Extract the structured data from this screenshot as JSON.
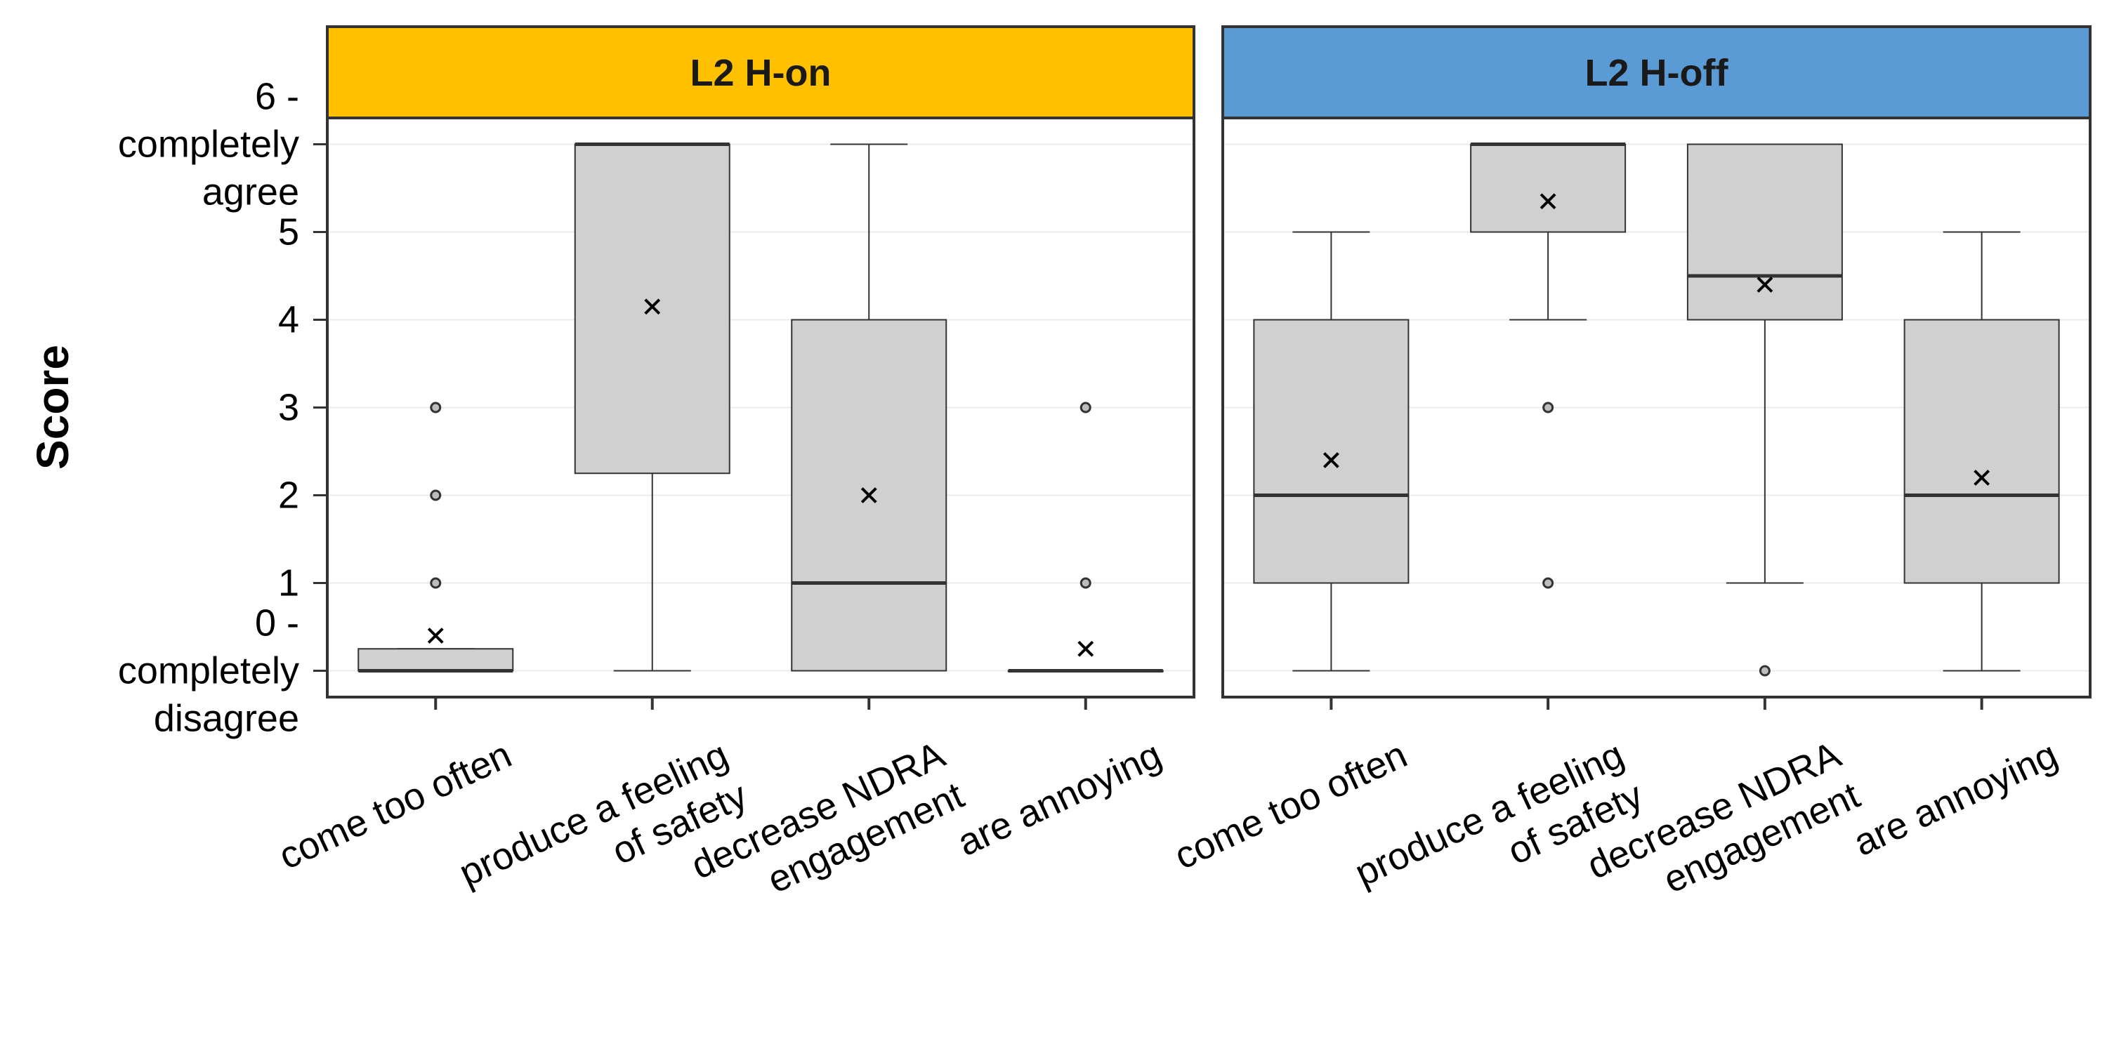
{
  "chart_data": {
    "type": "boxplot",
    "ylabel": "Score",
    "ylim": [
      -0.3,
      6.3
    ],
    "yticks": [
      {
        "value": 0,
        "lines": [
          "0 -",
          "completely",
          "disagree"
        ]
      },
      {
        "value": 1,
        "lines": [
          "1"
        ]
      },
      {
        "value": 2,
        "lines": [
          "2"
        ]
      },
      {
        "value": 3,
        "lines": [
          "3"
        ]
      },
      {
        "value": 4,
        "lines": [
          "4"
        ]
      },
      {
        "value": 5,
        "lines": [
          "5"
        ]
      },
      {
        "value": 6,
        "lines": [
          "6 -",
          "completely",
          "agree"
        ]
      }
    ],
    "categories": [
      {
        "lines": [
          "come too often"
        ]
      },
      {
        "lines": [
          "produce a feeling",
          "of safety"
        ]
      },
      {
        "lines": [
          "decrease NDRA",
          "engagement"
        ]
      },
      {
        "lines": [
          "are annoying"
        ]
      }
    ],
    "box_fill": "#d1d0d1",
    "panels": [
      {
        "title": "L2 H-on",
        "strip_color": "#ffc000",
        "boxes": [
          {
            "lower_whisker": 0,
            "q1": 0,
            "median": 0,
            "q3": 0.25,
            "upper_whisker": 0.25,
            "mean": 0.4,
            "outliers": [
              1,
              2,
              3
            ]
          },
          {
            "lower_whisker": 0,
            "q1": 2.25,
            "median": 6,
            "q3": 6,
            "upper_whisker": 6,
            "mean": 4.15,
            "outliers": []
          },
          {
            "lower_whisker": 0,
            "q1": 0,
            "median": 1,
            "q3": 4,
            "upper_whisker": 6,
            "mean": 2.0,
            "outliers": []
          },
          {
            "lower_whisker": 0,
            "q1": 0,
            "median": 0,
            "q3": 0,
            "upper_whisker": 0,
            "mean": 0.25,
            "outliers": [
              1,
              3
            ]
          }
        ]
      },
      {
        "title": "L2 H-off",
        "strip_color": "#5b9bd5",
        "boxes": [
          {
            "lower_whisker": 0,
            "q1": 1,
            "median": 2,
            "q3": 4,
            "upper_whisker": 5,
            "mean": 2.4,
            "outliers": []
          },
          {
            "lower_whisker": 4,
            "q1": 5,
            "median": 6,
            "q3": 6,
            "upper_whisker": 6,
            "mean": 5.35,
            "outliers": [
              1,
              3
            ]
          },
          {
            "lower_whisker": 1,
            "q1": 4,
            "median": 4.5,
            "q3": 6,
            "upper_whisker": 6,
            "mean": 4.4,
            "outliers": [
              0
            ]
          },
          {
            "lower_whisker": 0,
            "q1": 1,
            "median": 2,
            "q3": 4,
            "upper_whisker": 5,
            "mean": 2.2,
            "outliers": []
          }
        ]
      }
    ]
  }
}
